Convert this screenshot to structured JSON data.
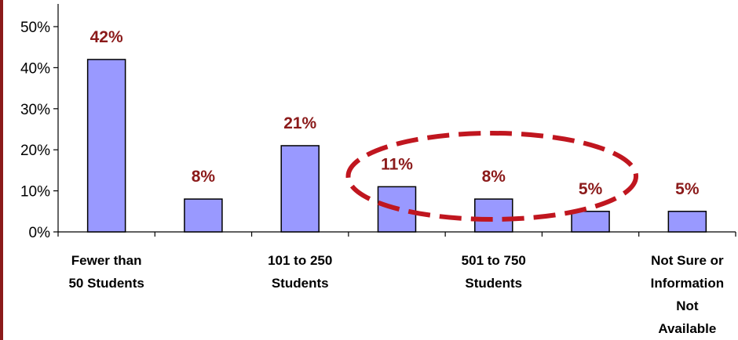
{
  "chart_data": {
    "type": "bar",
    "title": "",
    "xlabel": "",
    "ylabel": "",
    "ylim": [
      0,
      50
    ],
    "y_ticks": [
      "0%",
      "10%",
      "20%",
      "30%",
      "40%",
      "50%"
    ],
    "categories": [
      [
        "Fewer than",
        "50 Students"
      ],
      [],
      [
        "101 to 250",
        "Students"
      ],
      [],
      [
        "501 to 750",
        "Students"
      ],
      [],
      [
        "Not Sure or",
        "Information",
        "Not",
        "Available"
      ]
    ],
    "values": [
      42,
      8,
      21,
      11,
      8,
      5,
      5
    ],
    "data_labels": [
      "42%",
      "8%",
      "21%",
      "11%",
      "8%",
      "5%",
      "5%"
    ],
    "grid": false,
    "annotations": [
      {
        "type": "dashed-ellipse",
        "around_bars": [
          3,
          4,
          5
        ]
      }
    ]
  },
  "colors": {
    "bar_fill": "#9999ff",
    "bar_stroke": "#000000",
    "data_label": "#8b1a1a",
    "ellipse": "#c0161f",
    "left_border": "#8b1a1a"
  }
}
